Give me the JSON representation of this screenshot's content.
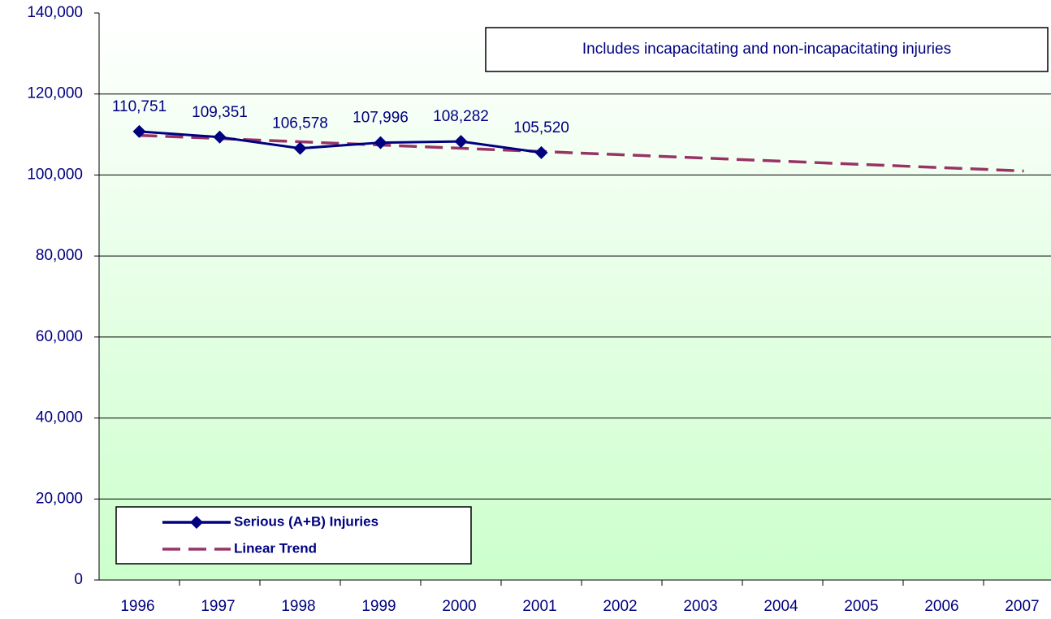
{
  "chart_data": {
    "type": "line",
    "annotation": "Includes incapacitating and non-incapacitating injuries",
    "categories": [
      "1996",
      "1997",
      "1998",
      "1999",
      "2000",
      "2001",
      "2002",
      "2003",
      "2004",
      "2005",
      "2006",
      "2007"
    ],
    "series": [
      {
        "name": "Serious (A+B) Injuries",
        "color": "#000080",
        "marker": "diamond",
        "values": [
          110751,
          109351,
          106578,
          107996,
          108282,
          105520,
          null,
          null,
          null,
          null,
          null,
          null
        ],
        "value_labels": [
          "110,751",
          "109,351",
          "106,578",
          "107,996",
          "108,282",
          "105,520",
          null,
          null,
          null,
          null,
          null,
          null
        ]
      },
      {
        "name": "Linear Trend",
        "color": "#993366",
        "dash": true,
        "values": [
          109800,
          109000,
          108200,
          107400,
          106600,
          105800,
          105000,
          104200,
          103400,
          102600,
          101800,
          101000
        ]
      }
    ],
    "ylim": [
      0,
      140000
    ],
    "yticks": [
      0,
      {
        "value": 20000,
        "label": "20,000"
      },
      {
        "value": 40000,
        "label": "40,000"
      },
      {
        "value": 60000,
        "label": "60,000"
      },
      {
        "value": 80000,
        "label": "80,000"
      },
      {
        "value": 100000,
        "label": "100,000"
      },
      {
        "value": 120000,
        "label": "120,000"
      },
      {
        "value": 140000,
        "label": "140,000"
      }
    ],
    "grid": true,
    "legend": "lower left"
  }
}
